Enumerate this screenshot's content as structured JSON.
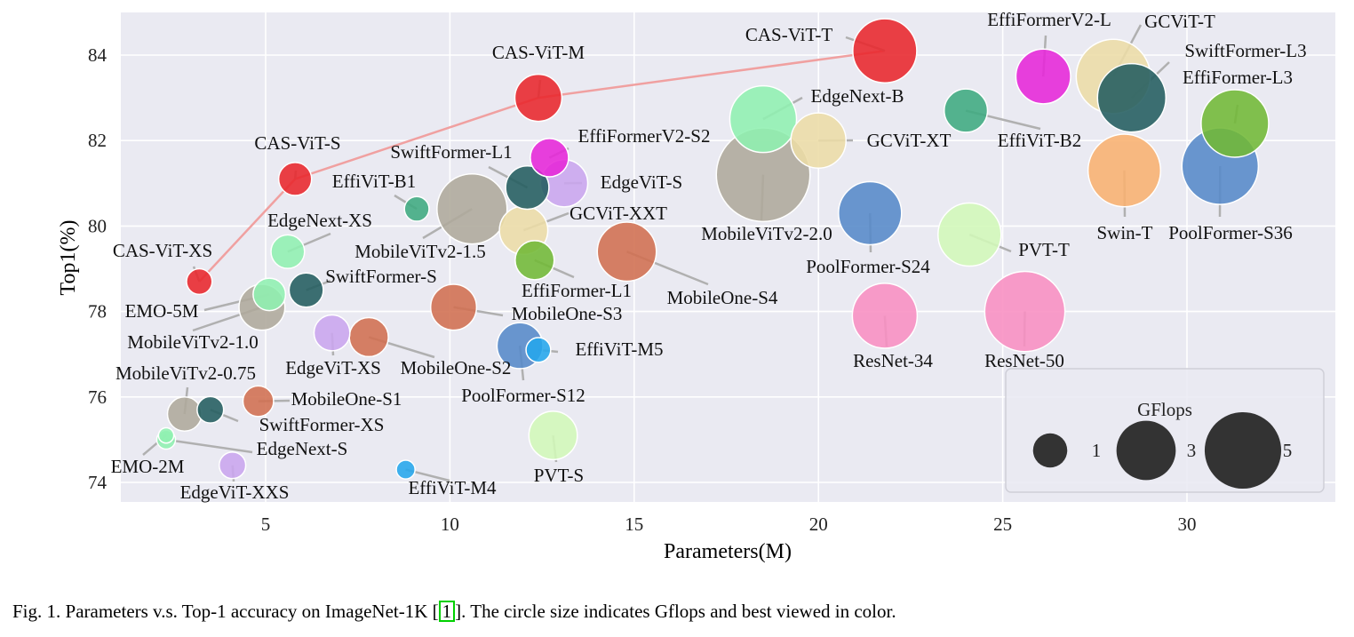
{
  "chart_data": {
    "type": "scatter",
    "xlabel": "Parameters(M)",
    "ylabel": "Top1(%)",
    "xlim": [
      1,
      34
    ],
    "ylim": [
      73.6,
      85.0
    ],
    "xticks": [
      5,
      10,
      15,
      20,
      25,
      30
    ],
    "yticks": [
      74,
      76,
      78,
      80,
      82,
      84
    ],
    "grid": true,
    "size_legend": {
      "title": "GFlops",
      "placement": "bottom-right",
      "entries": [
        {
          "label": "1",
          "gflops": 1
        },
        {
          "label": "3",
          "gflops": 3
        },
        {
          "label": "5",
          "gflops": 5
        }
      ]
    },
    "pareto_line": {
      "color": "#f0a0a0",
      "models": [
        "CAS-ViT-XS",
        "CAS-ViT-S",
        "CAS-ViT-M",
        "CAS-ViT-T"
      ]
    },
    "points": [
      {
        "name": "CAS-ViT-XS",
        "params": 3.2,
        "top1": 78.7,
        "gflops": 0.56,
        "color": "#e8262b"
      },
      {
        "name": "CAS-ViT-S",
        "params": 5.8,
        "top1": 81.1,
        "gflops": 0.93,
        "color": "#e8262b"
      },
      {
        "name": "CAS-ViT-M",
        "params": 12.4,
        "top1": 83.0,
        "gflops": 1.89,
        "color": "#e8262b"
      },
      {
        "name": "CAS-ViT-T",
        "params": 21.8,
        "top1": 84.1,
        "gflops": 3.5,
        "color": "#e8262b"
      },
      {
        "name": "EffiFormerV2-S2",
        "params": 12.7,
        "top1": 81.6,
        "gflops": 1.25,
        "color": "#e625d8"
      },
      {
        "name": "EffiFormerV2-L",
        "params": 26.1,
        "top1": 83.5,
        "gflops": 2.56,
        "color": "#e625d8"
      },
      {
        "name": "SwiftFormer-L1",
        "params": 12.1,
        "top1": 80.9,
        "gflops": 1.6,
        "color": "#225c5f"
      },
      {
        "name": "SwiftFormer-L3",
        "params": 28.5,
        "top1": 83.0,
        "gflops": 4.0,
        "color": "#225c5f"
      },
      {
        "name": "SwiftFormer-S",
        "params": 6.1,
        "top1": 78.5,
        "gflops": 1.0,
        "color": "#225c5f"
      },
      {
        "name": "SwiftFormer-XS",
        "params": 3.5,
        "top1": 75.7,
        "gflops": 0.6,
        "color": "#225c5f"
      },
      {
        "name": "EffiViT-B1",
        "params": 9.1,
        "top1": 80.4,
        "gflops": 0.52,
        "color": "#3daa80"
      },
      {
        "name": "EffiViT-B2",
        "params": 24.0,
        "top1": 82.7,
        "gflops": 1.6,
        "color": "#3daa80"
      },
      {
        "name": "EffiViT-M5",
        "params": 12.4,
        "top1": 77.1,
        "gflops": 0.52,
        "color": "#24a6ec"
      },
      {
        "name": "EffiViT-M4",
        "params": 8.8,
        "top1": 74.3,
        "gflops": 0.3,
        "color": "#24a6ec"
      },
      {
        "name": "EdgeViT-S",
        "params": 13.1,
        "top1": 81.0,
        "gflops": 1.9,
        "color": "#caa5ee"
      },
      {
        "name": "EdgeViT-XS",
        "params": 6.8,
        "top1": 77.5,
        "gflops": 1.1,
        "color": "#caa5ee"
      },
      {
        "name": "EdgeViT-XXS",
        "params": 4.1,
        "top1": 74.4,
        "gflops": 0.6,
        "color": "#caa5ee"
      },
      {
        "name": "EdgeNext-B",
        "params": 18.5,
        "top1": 82.5,
        "gflops": 3.8,
        "color": "#90f0b0"
      },
      {
        "name": "EdgeNext-XS",
        "params": 5.6,
        "top1": 79.4,
        "gflops": 0.96,
        "color": "#90f0b0"
      },
      {
        "name": "EdgeNext-S",
        "params": 2.3,
        "top1": 75.0,
        "gflops": 0.3,
        "color": "#90f0b0"
      },
      {
        "name": "EMO-5M",
        "params": 5.1,
        "top1": 78.4,
        "gflops": 0.9,
        "color": "#90f0b0"
      },
      {
        "name": "EMO-2M",
        "params": 2.3,
        "top1": 75.1,
        "gflops": 0.2,
        "color": "#90f0b0"
      },
      {
        "name": "GCViT-T",
        "params": 28.0,
        "top1": 83.5,
        "gflops": 4.7,
        "color": "#ecdca6"
      },
      {
        "name": "GCViT-XT",
        "params": 20.0,
        "top1": 82.0,
        "gflops": 2.6,
        "color": "#ecdca6"
      },
      {
        "name": "GCViT-XXT",
        "params": 12.0,
        "top1": 79.9,
        "gflops": 2.0,
        "color": "#ecdca6"
      },
      {
        "name": "MobileViTv2-2.0",
        "params": 18.5,
        "top1": 81.2,
        "gflops": 7.5,
        "color": "#aea99b"
      },
      {
        "name": "MobileViTv2-1.5",
        "params": 10.6,
        "top1": 80.4,
        "gflops": 4.2,
        "color": "#aea99b"
      },
      {
        "name": "MobileViTv2-1.0",
        "params": 4.9,
        "top1": 78.1,
        "gflops": 1.8,
        "color": "#aea99b"
      },
      {
        "name": "MobileViTv2-0.75",
        "params": 2.8,
        "top1": 75.6,
        "gflops": 1.0,
        "color": "#aea99b"
      },
      {
        "name": "EffiFormer-L1",
        "params": 12.3,
        "top1": 79.2,
        "gflops": 1.3,
        "color": "#71b836"
      },
      {
        "name": "EffiFormer-L3",
        "params": 31.3,
        "top1": 82.4,
        "gflops": 3.9,
        "color": "#71b836"
      },
      {
        "name": "MobileOne-S4",
        "params": 14.8,
        "top1": 79.4,
        "gflops": 2.98,
        "color": "#d06e50"
      },
      {
        "name": "MobileOne-S3",
        "params": 10.1,
        "top1": 78.1,
        "gflops": 1.8,
        "color": "#d06e50"
      },
      {
        "name": "MobileOne-S2",
        "params": 7.8,
        "top1": 77.4,
        "gflops": 1.3,
        "color": "#d06e50"
      },
      {
        "name": "MobileOne-S1",
        "params": 4.8,
        "top1": 75.9,
        "gflops": 0.8,
        "color": "#d06e50"
      },
      {
        "name": "PoolFormer-S12",
        "params": 11.9,
        "top1": 77.2,
        "gflops": 1.8,
        "color": "#5589c8"
      },
      {
        "name": "PoolFormer-S24",
        "params": 21.4,
        "top1": 80.3,
        "gflops": 3.4,
        "color": "#5589c8"
      },
      {
        "name": "PoolFormer-S36",
        "params": 30.9,
        "top1": 81.4,
        "gflops": 5.0,
        "color": "#5589c8"
      },
      {
        "name": "PVT-S",
        "params": 12.8,
        "top1": 75.1,
        "gflops": 2.0,
        "color": "#d2f8b8"
      },
      {
        "name": "PVT-T",
        "params": 24.1,
        "top1": 79.8,
        "gflops": 3.4,
        "color": "#d2f8b8"
      },
      {
        "name": "Swin-T",
        "params": 28.3,
        "top1": 81.3,
        "gflops": 4.5,
        "color": "#f8b070"
      },
      {
        "name": "ResNet-34",
        "params": 21.8,
        "top1": 77.9,
        "gflops": 3.6,
        "color": "#f88ec2"
      },
      {
        "name": "ResNet-50",
        "params": 25.6,
        "top1": 78.0,
        "gflops": 5.5,
        "color": "#f88ec2"
      }
    ]
  },
  "caption": {
    "prefix": "Fig. 1.  Parameters v.s. Top-1 accuracy on ImageNet-1K [",
    "ref": "1",
    "suffix": "]. The circle size indicates Gflops and best viewed in color."
  }
}
